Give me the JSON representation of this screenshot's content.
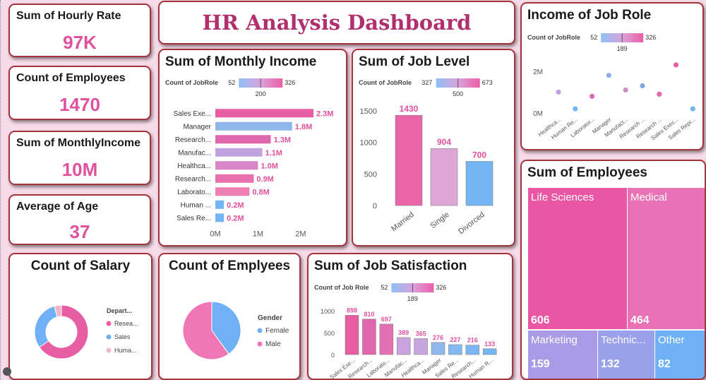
{
  "dashboard_title": "HR Analysis Dashboard",
  "colors": {
    "accent": "#e0519e",
    "border": "#a3333d",
    "title": "#b0306e",
    "background": "#f7dbe8"
  },
  "kpis": [
    {
      "title": "Sum of Hourly Rate",
      "value": "97K"
    },
    {
      "title": "Count of Employees",
      "value": "1470"
    },
    {
      "title": "Sum of MonthlyIncome",
      "value": "10M"
    },
    {
      "title": "Average of Age",
      "value": "37"
    }
  ],
  "legend_title": "Count of JobRole",
  "legend_title_alt": "Count of Job Role",
  "chart_data": [
    {
      "type": "bar",
      "orientation": "horizontal",
      "title": "Sum of Monthly Income",
      "legend_scale": {
        "min": "52",
        "max": "326",
        "mid": "200"
      },
      "categories": [
        "Sales Exe...",
        "Manager",
        "Research...",
        "Manufac...",
        "Healthca...",
        "Research...",
        "Laborato...",
        "Human ...",
        "Sales Re..."
      ],
      "values": [
        2.3,
        1.8,
        1.3,
        1.1,
        1.0,
        0.9,
        0.8,
        0.2,
        0.2
      ],
      "value_labels": [
        "2.3M",
        "1.8M",
        "1.3M",
        "1.1M",
        "1.0M",
        "0.9M",
        "0.8M",
        "0.2M",
        "0.2M"
      ],
      "colors": [
        "#e75ea4",
        "#8fb7ec",
        "#df68ad",
        "#c0a2df",
        "#d886c8",
        "#e870ae",
        "#ee7fb3",
        "#74b5f3",
        "#74b5f3"
      ],
      "xlim": [
        0,
        2.3
      ],
      "xticks": [
        {
          "v": 0,
          "label": "0M"
        },
        {
          "v": 1,
          "label": "1M"
        },
        {
          "v": 2,
          "label": "2M"
        }
      ]
    },
    {
      "type": "bar",
      "title": "Sum of Job Level",
      "legend_scale": {
        "min": "327",
        "max": "673",
        "mid": "500"
      },
      "categories": [
        "Married",
        "Single",
        "Divorced"
      ],
      "values": [
        1430,
        904,
        700
      ],
      "value_labels": [
        "1430",
        "904",
        "700"
      ],
      "colors": [
        "#ea65a8",
        "#dea6d6",
        "#74b5f3"
      ],
      "ylim": [
        0,
        1600
      ],
      "yticks": [
        0,
        500,
        1000,
        1500
      ]
    },
    {
      "type": "scatter",
      "title": "Income of Job Role",
      "legend_scale": {
        "min": "52",
        "max": "326",
        "mid": "189"
      },
      "categories": [
        "Healthca...",
        "Human Re...",
        "Laborator...",
        "Manager",
        "Manufact...",
        "Research ...",
        "Research ...",
        "Sales Exec...",
        "Sales Repr..."
      ],
      "values": [
        1.0,
        0.2,
        0.8,
        1.8,
        1.1,
        1.3,
        0.9,
        2.3,
        0.2
      ],
      "colors": [
        "#c1a1dd",
        "#74b5f3",
        "#d96bb5",
        "#8fb0e3",
        "#cf8ec6",
        "#7fa8e0",
        "#e06aaa",
        "#e75ea4",
        "#74b5f3"
      ],
      "ylim": [
        0,
        2.6
      ],
      "yticks": [
        {
          "v": 0,
          "label": "0M"
        },
        {
          "v": 2,
          "label": "2M"
        }
      ]
    },
    {
      "type": "treemap",
      "title": "Sum of Employees",
      "items": [
        {
          "label": "Life Sciences",
          "value": "606",
          "color": "#e856a4"
        },
        {
          "label": "Medical",
          "value": "464",
          "color": "#e872b5"
        },
        {
          "label": "Marketing",
          "value": "159",
          "color": "#a99be6"
        },
        {
          "label": "Technic...",
          "value": "132",
          "color": "#9aa0ea"
        },
        {
          "label": "Other",
          "value": "82",
          "color": "#6fb1f4"
        }
      ]
    },
    {
      "type": "pie",
      "variant": "donut",
      "title": "Count of Salary",
      "legend_title": "Depart...",
      "labels": [
        "Resea...",
        "Sales",
        "Huma..."
      ],
      "values": [
        961,
        446,
        63
      ],
      "colors": [
        "#e75ea4",
        "#6fb1f4",
        "#f2b7c6"
      ]
    },
    {
      "type": "pie",
      "title": "Count of Emplyees",
      "legend_title": "Gender",
      "labels": [
        "Female",
        "Male"
      ],
      "values": [
        588,
        882
      ],
      "colors": [
        "#6fb1f4",
        "#ef77b6"
      ]
    },
    {
      "type": "bar",
      "title": "Sum of Job Satisfaction",
      "legend_scale": {
        "min": "52",
        "max": "326",
        "mid": "189"
      },
      "categories": [
        "Sales Exe...",
        "Research...",
        "Laborato...",
        "Manufac...",
        "Healthca...",
        "Manager",
        "Sales Re...",
        "Research...",
        "Human R..."
      ],
      "values": [
        898,
        810,
        697,
        389,
        365,
        276,
        227,
        216,
        133
      ],
      "value_labels": [
        "898",
        "810",
        "697",
        "389",
        "365",
        "276",
        "227",
        "216",
        "133"
      ],
      "colors": [
        "#e75ea4",
        "#e166ac",
        "#e270b2",
        "#c9a3dd",
        "#c7a6df",
        "#8fb7ec",
        "#84b8f1",
        "#7ab6f2",
        "#74b5f3"
      ],
      "ylim": [
        0,
        1000
      ],
      "yticks": [
        0,
        500,
        1000
      ]
    }
  ]
}
